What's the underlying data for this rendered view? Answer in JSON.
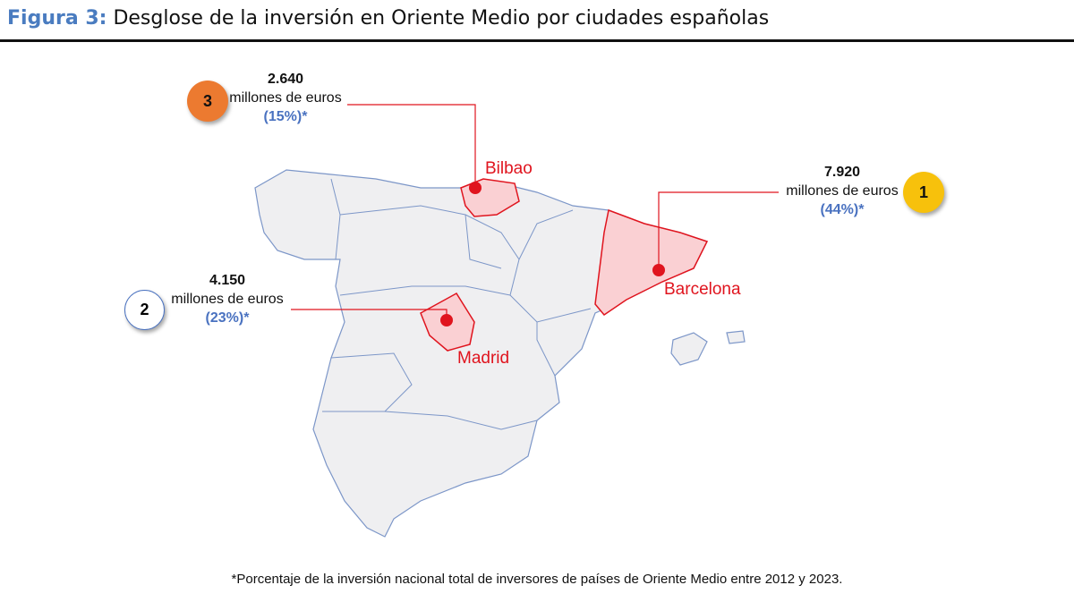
{
  "header": {
    "label": "Figura 3:",
    "title": "Desglose de la inversión en Oriente Medio por ciudades españolas"
  },
  "cities": [
    {
      "rank": "3",
      "amount": "2.640",
      "unit": "millones de euros",
      "share": "(15%)*",
      "name": "Bilbao"
    },
    {
      "rank": "2",
      "amount": "4.150",
      "unit": "millones de euros",
      "share": "(23%)*",
      "name": "Madrid"
    },
    {
      "rank": "1",
      "amount": "7.920",
      "unit": "millones de euros",
      "share": "(44%)*",
      "name": "Barcelona"
    }
  ],
  "footnote": "*Porcentaje de la inversión nacional total de inversores de países de Oriente Medio entre 2012 y 2023."
}
